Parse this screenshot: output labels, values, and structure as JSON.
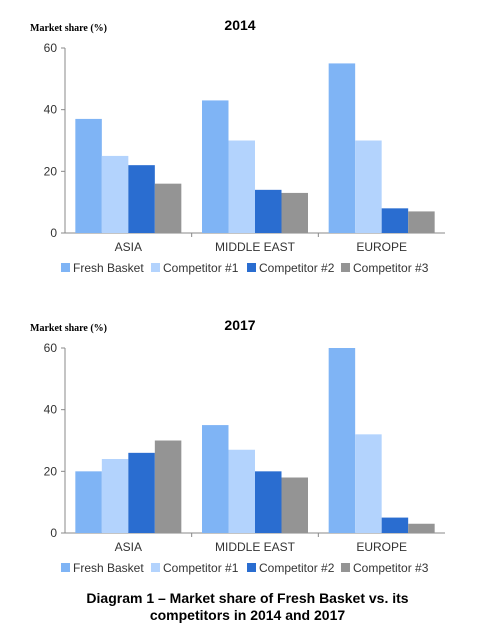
{
  "colors": {
    "Fresh Basket": "#7fb4f5",
    "Competitor #1": "#b3d3fd",
    "Competitor #2": "#2a6dd0",
    "Competitor #3": "#949494"
  },
  "caption": {
    "line1": "Diagram 1 – Market share of Fresh Basket vs. its",
    "line2": "competitors in 2014 and 2017"
  },
  "chart_data": [
    {
      "type": "bar",
      "title": "2014",
      "ylabel": "Market share (%)",
      "xlabel": "",
      "ylim": [
        0,
        60
      ],
      "yticks": [
        0,
        20,
        40,
        60
      ],
      "legend": "bottom",
      "grid": false,
      "categories": [
        "ASIA",
        "MIDDLE EAST",
        "EUROPE"
      ],
      "series": [
        {
          "name": "Fresh Basket",
          "values": [
            37,
            43,
            55
          ]
        },
        {
          "name": "Competitor #1",
          "values": [
            25,
            30,
            30
          ]
        },
        {
          "name": "Competitor #2",
          "values": [
            22,
            14,
            8
          ]
        },
        {
          "name": "Competitor #3",
          "values": [
            16,
            13,
            7
          ]
        }
      ]
    },
    {
      "type": "bar",
      "title": "2017",
      "ylabel": "Market share (%)",
      "xlabel": "",
      "ylim": [
        0,
        60
      ],
      "yticks": [
        0,
        20,
        40,
        60
      ],
      "legend": "bottom",
      "grid": false,
      "categories": [
        "ASIA",
        "MIDDLE EAST",
        "EUROPE"
      ],
      "series": [
        {
          "name": "Fresh Basket",
          "values": [
            20,
            35,
            60
          ]
        },
        {
          "name": "Competitor #1",
          "values": [
            24,
            27,
            32
          ]
        },
        {
          "name": "Competitor #2",
          "values": [
            26,
            20,
            5
          ]
        },
        {
          "name": "Competitor #3",
          "values": [
            30,
            18,
            3
          ]
        }
      ]
    }
  ]
}
